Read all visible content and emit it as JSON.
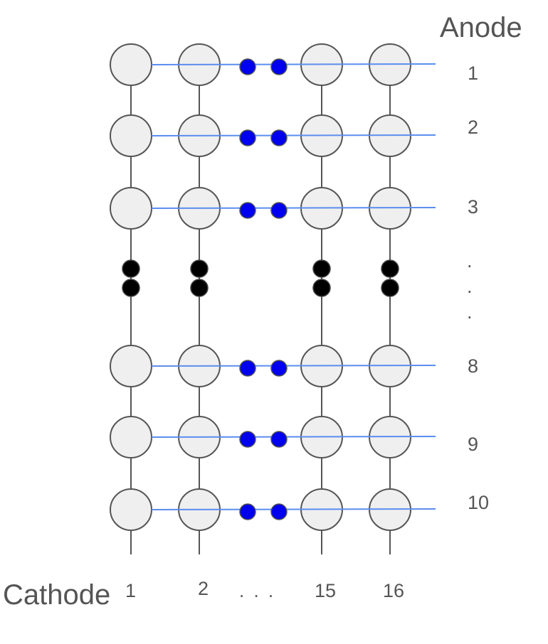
{
  "anode": {
    "label": "Anode",
    "rows": [
      {
        "label": "1",
        "repeat_dots": true
      },
      {
        "label": "2",
        "repeat_dots": true
      },
      {
        "label": "3",
        "repeat_dots": true
      },
      {
        "label": "8",
        "repeat_dots": true
      },
      {
        "label": "9",
        "repeat_dots": true
      },
      {
        "label": "10",
        "repeat_dots": true
      }
    ],
    "vertical_ellipsis": [
      ".",
      ".",
      "."
    ]
  },
  "cathode": {
    "label": "Cathode",
    "columns": [
      {
        "label": "1"
      },
      {
        "label": "2"
      },
      {
        "label": "15"
      },
      {
        "label": "16"
      }
    ],
    "horizontal_ellipsis": ". . ."
  },
  "colors": {
    "anode_line": "#5b8def",
    "cathode_line": "#555555",
    "cell_fill": "#efefef",
    "cell_stroke": "#555555",
    "row_dot": "#0000ee",
    "column_dot": "#000000",
    "label": "#555555"
  }
}
